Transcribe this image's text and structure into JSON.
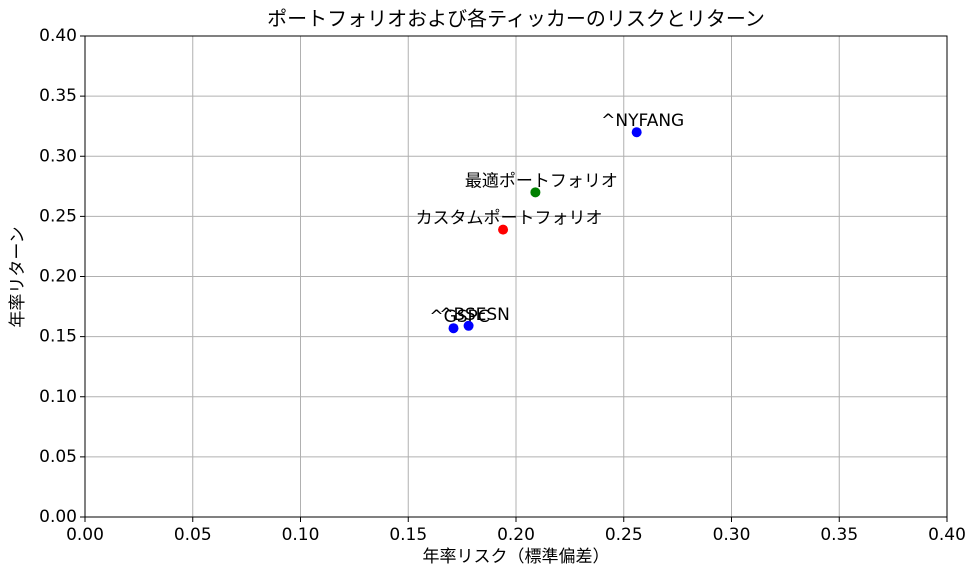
{
  "chart_data": {
    "type": "scatter",
    "title": "ポートフォリオおよび各ティッカーのリスクとリターン",
    "xlabel": "年率リスク（標準偏差）",
    "ylabel": "年率リターン",
    "series": [
      {
        "name": "^NYFANG",
        "color": "#0000ff",
        "x": [
          0.256
        ],
        "values": [
          0.32
        ]
      },
      {
        "name": "最適ポートフォリオ",
        "color": "#008000",
        "x": [
          0.209
        ],
        "values": [
          0.27
        ]
      },
      {
        "name": "カスタムポートフォリオ",
        "color": "#ff0000",
        "x": [
          0.194
        ],
        "values": [
          0.239
        ]
      },
      {
        "name": "^GSPC",
        "color": "#0000ff",
        "x": [
          0.171
        ],
        "values": [
          0.157
        ]
      },
      {
        "name": "^BSESN",
        "color": "#0000ff",
        "x": [
          0.178
        ],
        "values": [
          0.159
        ]
      }
    ],
    "xlim": [
      0,
      0.4
    ],
    "ylim": [
      0,
      0.4
    ],
    "xticks": [
      {
        "value": 0,
        "label": "0.00"
      },
      {
        "value": 0.05,
        "label": "0.05"
      },
      {
        "value": 0.1,
        "label": "0.10"
      },
      {
        "value": 0.15,
        "label": "0.15"
      },
      {
        "value": 0.2,
        "label": "0.20"
      },
      {
        "value": 0.25,
        "label": "0.25"
      },
      {
        "value": 0.3,
        "label": "0.30"
      },
      {
        "value": 0.35,
        "label": "0.35"
      },
      {
        "value": 0.4,
        "label": "0.40"
      }
    ],
    "yticks": [
      {
        "value": 0,
        "label": "0.00"
      },
      {
        "value": 0.05,
        "label": "0.05"
      },
      {
        "value": 0.1,
        "label": "0.10"
      },
      {
        "value": 0.15,
        "label": "0.15"
      },
      {
        "value": 0.2,
        "label": "0.20"
      },
      {
        "value": 0.25,
        "label": "0.25"
      },
      {
        "value": 0.3,
        "label": "0.30"
      },
      {
        "value": 0.35,
        "label": "0.35"
      },
      {
        "value": 0.4,
        "label": "0.40"
      }
    ],
    "grid": true
  }
}
